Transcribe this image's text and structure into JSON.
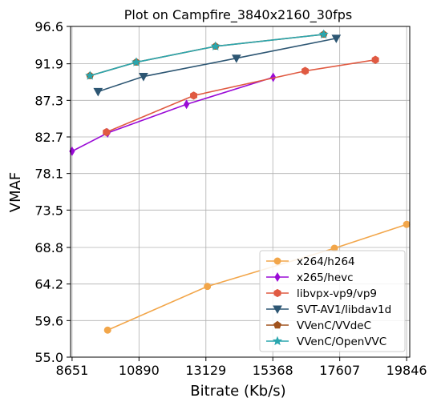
{
  "chart_data": {
    "type": "line",
    "title": "Plot on Campfire_3840x2160_30fps",
    "xlabel": "Bitrate (Kb/s)",
    "ylabel": "VMAF",
    "xlim": [
      8600,
      19950
    ],
    "ylim": [
      55.0,
      96.6
    ],
    "x_ticks": [
      8651,
      10890,
      13129,
      15368,
      17607,
      19846
    ],
    "x_tick_labels": [
      "8651",
      "10890",
      "13129",
      "15368",
      "17607",
      "19846"
    ],
    "y_ticks": [
      55.0,
      59.6,
      64.2,
      68.8,
      73.5,
      78.1,
      82.7,
      87.3,
      91.9,
      96.6
    ],
    "y_tick_labels": [
      "55.0",
      "59.6",
      "64.2",
      "68.8",
      "73.5",
      "78.1",
      "82.7",
      "87.3",
      "91.9",
      "96.6"
    ],
    "grid": true,
    "legend_position": "lower-right",
    "series": [
      {
        "name": "x264/h264",
        "color": "#f2a64a",
        "marker": "circle",
        "x": [
          9840,
          13180,
          17430,
          19846
        ],
        "y": [
          58.4,
          63.9,
          68.7,
          71.7
        ]
      },
      {
        "name": "x265/hevc",
        "color": "#9a0bd6",
        "marker": "thin_diamond",
        "x": [
          8651,
          9840,
          12480,
          15380
        ],
        "y": [
          80.9,
          83.2,
          86.8,
          90.2
        ]
      },
      {
        "name": "libvpx-vp9/vp9",
        "color": "#e05a42",
        "marker": "hexagon",
        "x": [
          9800,
          12720,
          16450,
          18800
        ],
        "y": [
          83.3,
          87.9,
          91.0,
          92.4
        ]
      },
      {
        "name": "SVT-AV1/libdav1d",
        "color": "#2d5673",
        "marker": "triangle_down",
        "x": [
          9520,
          11040,
          14150,
          17490
        ],
        "y": [
          88.4,
          90.3,
          92.6,
          95.1
        ]
      },
      {
        "name": "VVenC/VVdeC",
        "color": "#a0521d",
        "marker": "pentagon",
        "x": [
          9250,
          10800,
          13450,
          17070
        ],
        "y": [
          90.4,
          92.1,
          94.1,
          95.6
        ]
      },
      {
        "name": "VVenC/OpenVVC",
        "color": "#2aa6ae",
        "marker": "star",
        "x": [
          9250,
          10800,
          13450,
          17070
        ],
        "y": [
          90.4,
          92.1,
          94.1,
          95.6
        ]
      }
    ]
  }
}
